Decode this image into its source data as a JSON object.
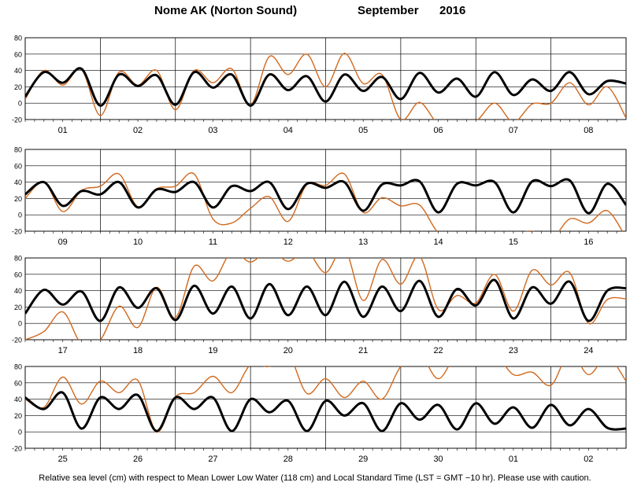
{
  "title": {
    "location": "Nome AK (Norton Sound)",
    "month": "September",
    "year": "2016"
  },
  "footer": "Relative sea level (cm) with respect to Mean Lower Low Water (118 cm) and Local Standard Time (LST = GMT −10 hr). Please use with caution.",
  "colors": {
    "predicted": "#000000",
    "observed": "#d2691e"
  },
  "chart_data": [
    {
      "type": "line",
      "xlabel": "",
      "ylabel": "",
      "ylim": [
        -20,
        80
      ],
      "yticks": [
        -20,
        0,
        20,
        40,
        60,
        80
      ],
      "grid": true,
      "days": [
        "01",
        "02",
        "03",
        "04",
        "05",
        "06",
        "07",
        "08"
      ],
      "series": [
        {
          "key": "predicted",
          "x": [
            0,
            0.25,
            0.5,
            0.75,
            1,
            1.25,
            1.5,
            1.75,
            2,
            2.25,
            2.5,
            2.75,
            3,
            3.25,
            3.5,
            3.75,
            4,
            4.25,
            4.5,
            4.75,
            5,
            5.25,
            5.5,
            5.75,
            6,
            6.25,
            6.5,
            6.75,
            7,
            7.25,
            7.5,
            7.75,
            8
          ],
          "y": [
            8,
            38,
            25,
            42,
            -3,
            35,
            21,
            34,
            -2,
            38,
            19,
            35,
            -3,
            35,
            16,
            33,
            2,
            35,
            15,
            32,
            5,
            37,
            13,
            30,
            8,
            38,
            10,
            29,
            15,
            38,
            11,
            27,
            24
          ]
        },
        {
          "key": "observed",
          "x": [
            0,
            0.25,
            0.5,
            0.75,
            1,
            1.25,
            1.5,
            1.75,
            2,
            2.25,
            2.5,
            2.75,
            3,
            3.25,
            3.5,
            3.75,
            4,
            4.25,
            4.5,
            4.75,
            5,
            5.25,
            5.5,
            5.75,
            6,
            6.25,
            6.5,
            6.75,
            7,
            7.25,
            7.5,
            7.75,
            8
          ],
          "y": [
            5,
            40,
            22,
            41,
            -15,
            38,
            22,
            40,
            -8,
            40,
            25,
            42,
            -2,
            57,
            35,
            60,
            20,
            61,
            24,
            35,
            -20,
            1,
            -25,
            -22,
            -22,
            0,
            -23,
            -1,
            0,
            25,
            -2,
            20,
            -18
          ]
        }
      ]
    },
    {
      "type": "line",
      "xlabel": "",
      "ylabel": "",
      "ylim": [
        -20,
        80
      ],
      "yticks": [
        -20,
        0,
        20,
        40,
        60,
        80
      ],
      "grid": true,
      "days": [
        "09",
        "10",
        "11",
        "12",
        "13",
        "14",
        "15",
        "16"
      ],
      "series": [
        {
          "key": "predicted",
          "x": [
            0,
            0.25,
            0.5,
            0.75,
            1,
            1.25,
            1.5,
            1.75,
            2,
            2.25,
            2.5,
            2.75,
            3,
            3.25,
            3.5,
            3.75,
            4,
            4.25,
            4.5,
            4.75,
            5,
            5.25,
            5.5,
            5.75,
            6,
            6.25,
            6.5,
            6.75,
            7,
            7.25,
            7.5,
            7.75,
            8
          ],
          "y": [
            25,
            40,
            11,
            29,
            25,
            40,
            9,
            31,
            28,
            40,
            9,
            35,
            29,
            40,
            7,
            38,
            33,
            40,
            5,
            37,
            36,
            41,
            3,
            38,
            36,
            40,
            3,
            41,
            35,
            42,
            2,
            38,
            12
          ]
        },
        {
          "key": "observed",
          "x": [
            0,
            0.25,
            0.5,
            0.75,
            1,
            1.25,
            1.5,
            1.75,
            2,
            2.25,
            2.5,
            2.75,
            3,
            3.25,
            3.5,
            3.75,
            4,
            4.25,
            4.5,
            4.75,
            5,
            5.25,
            5.5,
            5.75,
            6,
            6.25,
            6.5,
            6.75,
            7,
            7.25,
            7.5,
            7.75,
            8
          ],
          "y": [
            20,
            40,
            4,
            30,
            35,
            50,
            10,
            32,
            35,
            50,
            -5,
            -10,
            8,
            22,
            -8,
            37,
            36,
            50,
            3,
            21,
            11,
            12,
            -22,
            -30,
            -28,
            -30,
            -25,
            -20,
            -30,
            -5,
            -10,
            5,
            -28
          ]
        }
      ]
    },
    {
      "type": "line",
      "xlabel": "",
      "ylabel": "",
      "ylim": [
        -20,
        80
      ],
      "yticks": [
        -20,
        0,
        20,
        40,
        60,
        80
      ],
      "grid": true,
      "days": [
        "17",
        "18",
        "19",
        "20",
        "21",
        "22",
        "23",
        "24"
      ],
      "series": [
        {
          "key": "predicted",
          "x": [
            0,
            0.25,
            0.5,
            0.75,
            1,
            1.25,
            1.5,
            1.75,
            2,
            2.25,
            2.5,
            2.75,
            3,
            3.25,
            3.5,
            3.75,
            4,
            4.25,
            4.5,
            4.75,
            5,
            5.25,
            5.5,
            5.75,
            6,
            6.25,
            6.5,
            6.75,
            7,
            7.25,
            7.5,
            7.75,
            8
          ],
          "y": [
            12,
            41,
            23,
            39,
            3,
            44,
            19,
            43,
            4,
            46,
            12,
            45,
            6,
            48,
            10,
            45,
            10,
            51,
            8,
            45,
            15,
            52,
            8,
            42,
            22,
            53,
            6,
            44,
            24,
            51,
            3,
            40,
            43
          ]
        },
        {
          "key": "observed",
          "x": [
            0,
            0.25,
            0.5,
            0.75,
            1,
            1.25,
            1.5,
            1.75,
            2,
            2.25,
            2.5,
            2.75,
            3,
            3.25,
            3.5,
            3.75,
            4,
            4.25,
            4.5,
            4.75,
            5,
            5.25,
            5.5,
            5.75,
            6,
            6.25,
            6.5,
            6.75,
            7,
            7.25,
            7.5,
            7.75,
            8
          ],
          "y": [
            -20,
            -10,
            14,
            -25,
            -20,
            21,
            -5,
            44,
            7,
            70,
            52,
            88,
            75,
            90,
            76,
            88,
            62,
            92,
            28,
            78,
            48,
            82,
            17,
            34,
            25,
            60,
            15,
            65,
            47,
            62,
            0,
            29,
            30
          ]
        }
      ]
    },
    {
      "type": "line",
      "xlabel": "",
      "ylabel": "",
      "ylim": [
        -20,
        80
      ],
      "yticks": [
        -20,
        0,
        20,
        40,
        60,
        80
      ],
      "grid": true,
      "days": [
        "25",
        "26",
        "27",
        "28",
        "29",
        "30",
        "01",
        "02"
      ],
      "series": [
        {
          "key": "predicted",
          "x": [
            0,
            0.25,
            0.5,
            0.75,
            1,
            1.25,
            1.5,
            1.75,
            2,
            2.25,
            2.5,
            2.75,
            3,
            3.25,
            3.5,
            3.75,
            4,
            4.25,
            4.5,
            4.75,
            5,
            5.25,
            5.5,
            5.75,
            6,
            6.25,
            6.5,
            6.75,
            7,
            7.25,
            7.5,
            7.75,
            8
          ],
          "y": [
            42,
            28,
            48,
            4,
            42,
            28,
            45,
            1,
            42,
            28,
            42,
            1,
            40,
            24,
            38,
            1,
            38,
            20,
            35,
            1,
            35,
            15,
            33,
            3,
            35,
            10,
            30,
            5,
            33,
            8,
            28,
            5,
            4
          ]
        },
        {
          "key": "observed",
          "x": [
            0,
            0.25,
            0.5,
            0.75,
            1,
            1.25,
            1.5,
            1.75,
            2,
            2.25,
            2.5,
            2.75,
            3,
            3.25,
            3.5,
            3.75,
            4,
            4.25,
            4.5,
            4.75,
            5,
            5.25,
            5.5,
            5.75,
            6,
            6.25,
            6.5,
            6.75,
            7,
            7.25,
            7.5,
            7.75,
            8
          ],
          "y": [
            40,
            30,
            67,
            34,
            62,
            48,
            63,
            0,
            43,
            48,
            68,
            48,
            82,
            80,
            95,
            47,
            65,
            42,
            62,
            40,
            80,
            95,
            65,
            95,
            90,
            96,
            70,
            73,
            57,
            97,
            70,
            92,
            62
          ]
        }
      ]
    }
  ]
}
